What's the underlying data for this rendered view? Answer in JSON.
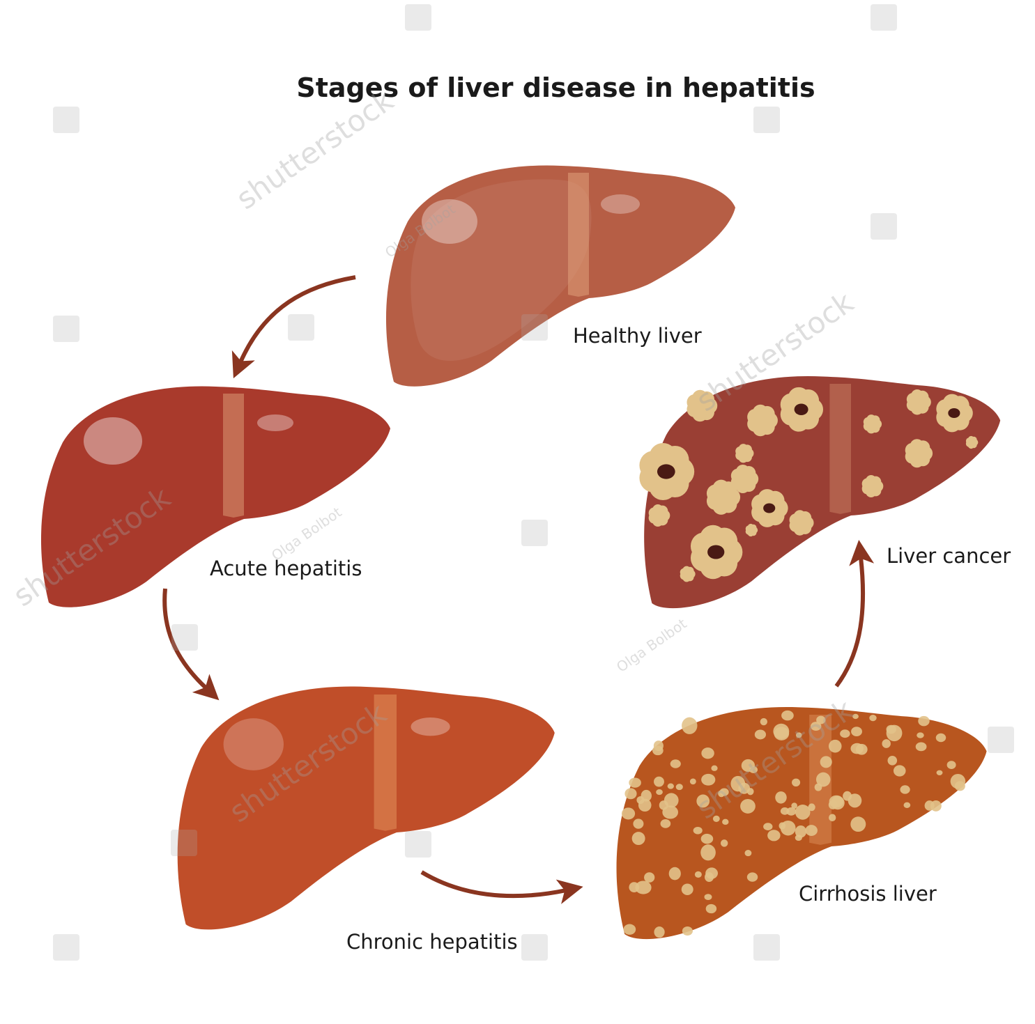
{
  "title": "Stages of liver disease in hepatitis",
  "stages": [
    {
      "id": "healthy",
      "label": "Healthy liver",
      "color": "#b65e45"
    },
    {
      "id": "acute",
      "label": "Acute hepatitis",
      "color": "#a93a2c"
    },
    {
      "id": "chronic",
      "label": "Chronic hepatitis",
      "color": "#c04e29"
    },
    {
      "id": "cirrhosis",
      "label": "Cirrhosis liver",
      "color": "#b8561f"
    },
    {
      "id": "cancer",
      "label": "Liver cancer",
      "color": "#9a3f34"
    }
  ],
  "lesion_color": "#e2c28a",
  "arrow_color": "#8a3520",
  "watermarks": {
    "brand": "shutterstock",
    "author": "Olga Bolbot"
  }
}
